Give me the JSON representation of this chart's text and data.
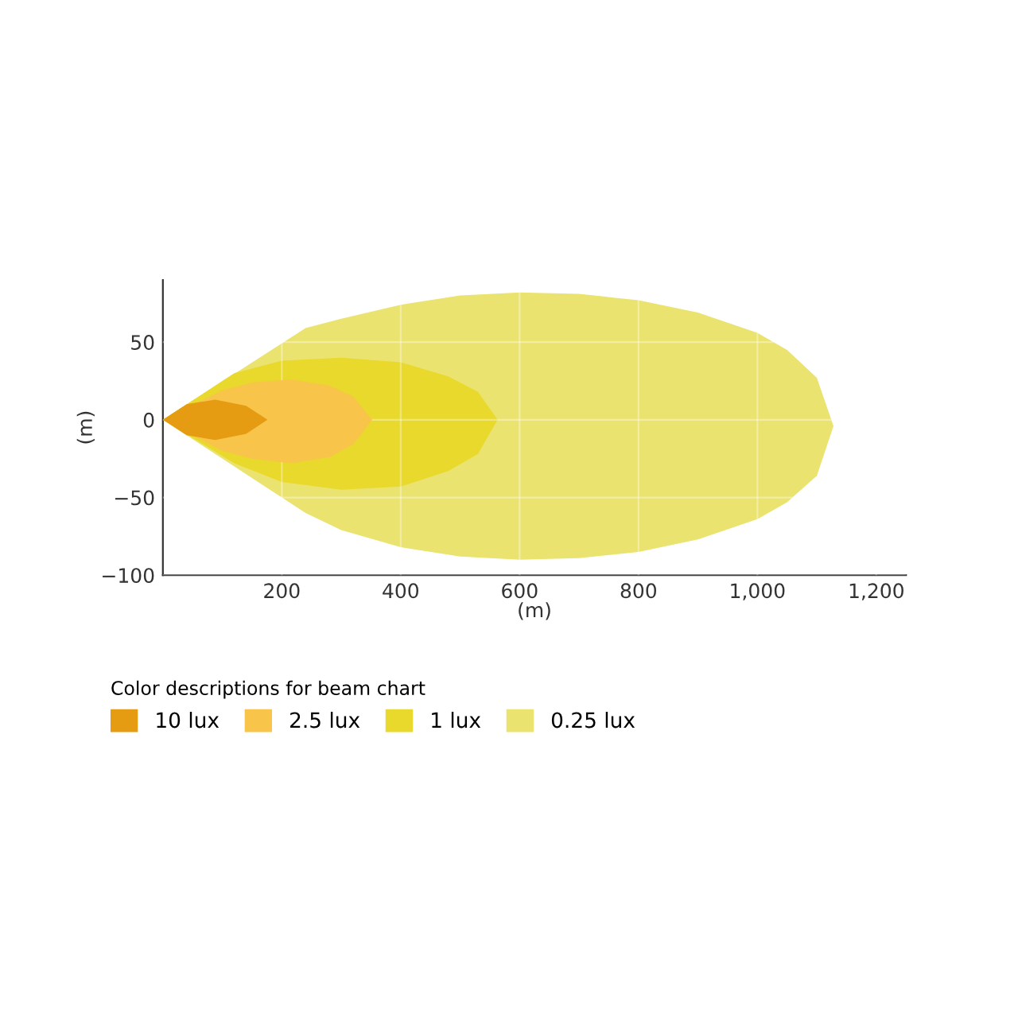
{
  "chart_data": {
    "type": "area",
    "xlabel": "(m)",
    "ylabel": "(m)",
    "legend_title": "Color descriptions for beam chart",
    "legend": "bottom",
    "grid": true,
    "xlim": [
      0,
      1250
    ],
    "xticks": [
      {
        "value": 200,
        "label": "200"
      },
      {
        "value": 400,
        "label": "400"
      },
      {
        "value": 600,
        "label": "600"
      },
      {
        "value": 800,
        "label": "800"
      },
      {
        "value": 1000,
        "label": "1,000"
      },
      {
        "value": 1200,
        "label": "1,200"
      }
    ],
    "ylim": [
      -100,
      90
    ],
    "yticks": [
      -100,
      -50,
      0,
      50
    ],
    "series": [
      {
        "name": "10 lux",
        "color": "#e59b12",
        "x": [
          0,
          40,
          88,
          140,
          176,
          140,
          88,
          40
        ],
        "values": [
          0,
          10,
          13,
          9,
          0,
          -9,
          -13,
          -10
        ]
      },
      {
        "name": "2.5 lux",
        "color": "#f8c44a",
        "x": [
          0,
          100,
          150,
          216,
          280,
          320,
          352,
          320,
          280,
          216,
          150,
          100
        ],
        "values": [
          0,
          19,
          24,
          26,
          22,
          15,
          0,
          -16,
          -24,
          -28,
          -25,
          -20
        ]
      },
      {
        "name": "1 lux",
        "color": "#e8d92c",
        "x": [
          0,
          120,
          200,
          300,
          400,
          480,
          530,
          563,
          530,
          480,
          400,
          300,
          200,
          120
        ],
        "values": [
          0,
          30,
          38,
          40,
          37,
          28,
          18,
          0,
          -22,
          -33,
          -43,
          -45,
          -40,
          -28
        ]
      },
      {
        "name": "0.25 lux",
        "color": "#ebe370",
        "x": [
          0,
          240,
          300,
          400,
          500,
          600,
          700,
          800,
          900,
          1000,
          1050,
          1100,
          1128,
          1100,
          1050,
          1000,
          900,
          800,
          700,
          600,
          500,
          400,
          300,
          240
        ],
        "values": [
          0,
          59,
          65,
          74,
          80,
          82,
          81,
          77,
          69,
          56,
          45,
          27,
          -4,
          -36,
          -53,
          -64,
          -77,
          -85,
          -89,
          -90,
          -88,
          -82,
          -71,
          -60
        ]
      }
    ]
  }
}
